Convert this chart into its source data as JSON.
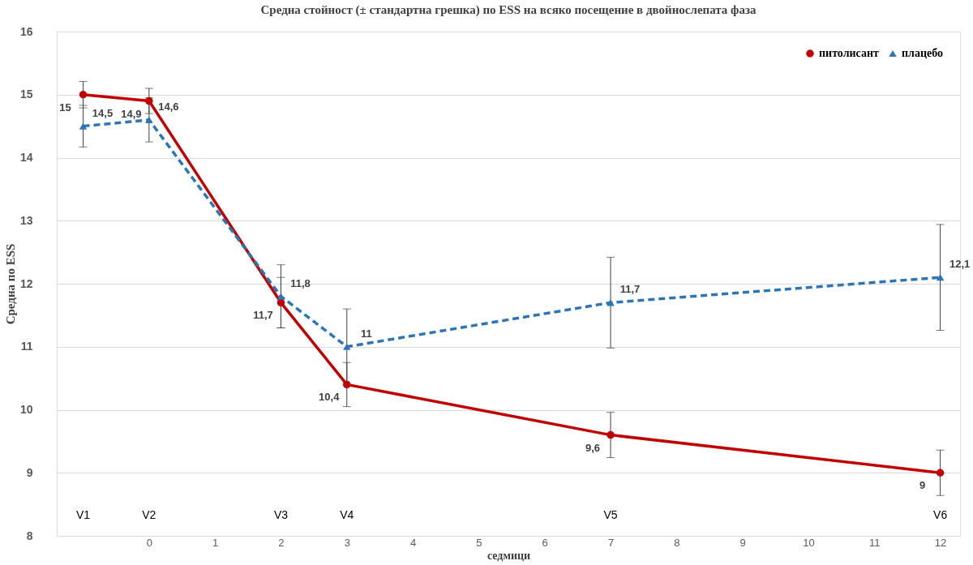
{
  "chart_data": {
    "type": "line",
    "title": "Средна стойност (± стандартна грешка) по ESS на всяко посещение в двойнослепата фаза",
    "xlabel": "седмици",
    "ylabel": "Средна по ESS",
    "x": [
      -1,
      0,
      2,
      3,
      7,
      12
    ],
    "series": [
      {
        "name": "питолисант",
        "color": "#c00000",
        "marker": "circle",
        "line_style": "solid",
        "values": [
          15,
          14.9,
          11.7,
          10.4,
          9.6,
          9.0
        ],
        "errors": [
          0.21,
          0.2,
          0.4,
          0.35,
          0.36,
          0.36
        ],
        "value_labels": [
          "15",
          "14,9",
          "11,7",
          "10,4",
          "9,6",
          "9"
        ]
      },
      {
        "name": "плацебо",
        "color": "#2e75b6",
        "marker": "triangle",
        "line_style": "dashed",
        "values": [
          14.5,
          14.6,
          11.8,
          11.0,
          11.7,
          12.1
        ],
        "errors": [
          0.33,
          0.35,
          0.5,
          0.6,
          0.72,
          0.84
        ],
        "value_labels": [
          "14,5",
          "14,6",
          "11,8",
          "11",
          "11,7",
          "12,1"
        ]
      }
    ],
    "annotations": [
      "V1",
      "V2",
      "V3",
      "V4",
      "V5",
      "V6"
    ],
    "xlim": [
      -1.4,
      12.3
    ],
    "xticks": [
      0,
      1,
      2,
      3,
      4,
      5,
      6,
      7,
      8,
      9,
      10,
      11,
      12
    ],
    "ylim": [
      8,
      16
    ],
    "yticks": [
      8,
      9,
      10,
      11,
      12,
      13,
      14,
      15,
      16
    ],
    "grid": "y",
    "legend": "top right"
  }
}
